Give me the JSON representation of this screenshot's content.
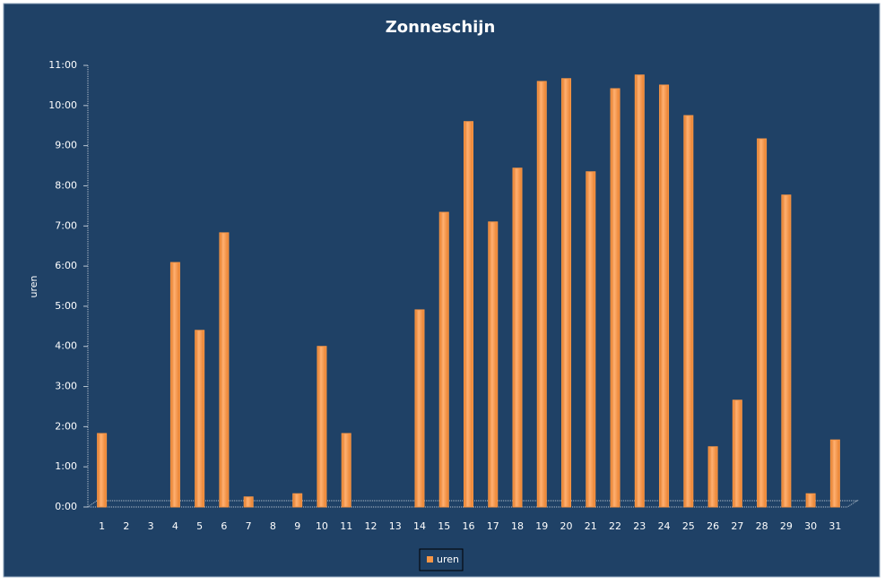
{
  "chart_data": {
    "type": "bar",
    "title": "Zonneschijn",
    "y_label": "uren",
    "categories": [
      "1",
      "2",
      "3",
      "4",
      "5",
      "6",
      "7",
      "8",
      "9",
      "10",
      "11",
      "12",
      "13",
      "14",
      "15",
      "16",
      "17",
      "18",
      "19",
      "20",
      "21",
      "22",
      "23",
      "24",
      "25",
      "26",
      "27",
      "28",
      "29",
      "30",
      "31"
    ],
    "series": [
      {
        "name": "uren",
        "color": "#f79646",
        "values": [
          1.83,
          0,
          0,
          6.09,
          4.4,
          6.83,
          0.25,
          0,
          0.33,
          4.0,
          1.83,
          0,
          0,
          4.91,
          7.34,
          9.6,
          7.1,
          8.44,
          10.6,
          10.67,
          8.35,
          10.42,
          10.76,
          10.51,
          9.75,
          1.5,
          2.66,
          9.17,
          7.77,
          0.33,
          1.67
        ]
      }
    ],
    "ylim": [
      0,
      11
    ],
    "yticks": [
      {
        "value": 0,
        "label": "0:00"
      },
      {
        "value": 1,
        "label": "1:00"
      },
      {
        "value": 2,
        "label": "2:00"
      },
      {
        "value": 3,
        "label": "3:00"
      },
      {
        "value": 4,
        "label": "4:00"
      },
      {
        "value": 5,
        "label": "5:00"
      },
      {
        "value": 6,
        "label": "6:00"
      },
      {
        "value": 7,
        "label": "7:00"
      },
      {
        "value": 8,
        "label": "8:00"
      },
      {
        "value": 9,
        "label": "9:00"
      },
      {
        "value": 10,
        "label": "10:00"
      },
      {
        "value": 11,
        "label": "11:00"
      }
    ],
    "grid": false,
    "legend": "bottom"
  }
}
